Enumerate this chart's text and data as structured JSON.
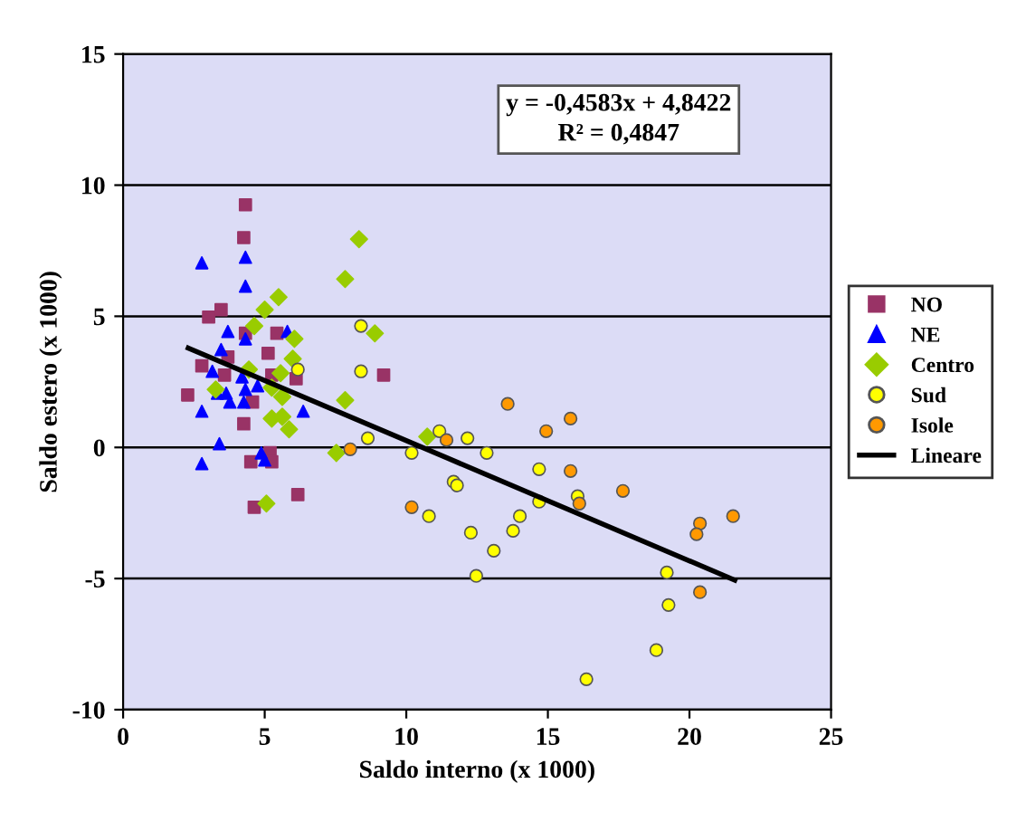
{
  "chart_data": {
    "type": "scatter",
    "xlabel": "Saldo interno (x 1000)",
    "ylabel": "Saldo estero (x 1000)",
    "xlim": [
      0,
      25
    ],
    "xticks": [
      0,
      5,
      10,
      15,
      20,
      25
    ],
    "ylim": [
      -10,
      15
    ],
    "yticks": [
      -10,
      -5,
      0,
      5,
      10,
      15
    ],
    "grid": "y",
    "legend": "right",
    "annotations": [
      "y = -0,4583x + 4,8422",
      "R² = 0,4847"
    ],
    "series": [
      {
        "name": "NO",
        "color": "#993366",
        "marker": "square",
        "x": [
          4.32,
          4.26,
          3.46,
          3.02,
          4.32,
          5.43,
          5.12,
          2.78,
          3.7,
          3.58,
          5.25,
          6.11,
          2.28,
          4.57,
          4.26,
          5.19,
          4.51,
          5.25,
          6.17,
          4.63,
          9.2
        ],
        "values": [
          9.25,
          8.0,
          5.25,
          4.97,
          4.35,
          4.35,
          3.59,
          3.11,
          3.45,
          2.76,
          2.76,
          2.62,
          2.0,
          1.73,
          0.9,
          -0.2,
          -0.55,
          -0.55,
          -1.8,
          -2.28,
          2.76
        ]
      },
      {
        "name": "NE",
        "color": "#0000ff",
        "marker": "triangle",
        "x": [
          2.78,
          4.32,
          4.32,
          3.7,
          4.32,
          5.8,
          3.46,
          3.15,
          3.33,
          3.64,
          4.2,
          4.75,
          4.32,
          3.77,
          4.26,
          2.78,
          6.36,
          3.4,
          2.78,
          4.88,
          5.0
        ],
        "values": [
          7.04,
          7.25,
          6.15,
          4.42,
          4.14,
          4.42,
          3.73,
          2.9,
          2.07,
          2.07,
          2.69,
          2.35,
          2.21,
          1.73,
          1.73,
          1.38,
          1.38,
          0.14,
          -0.62,
          -0.21,
          -0.48
        ]
      },
      {
        "name": "Centro",
        "color": "#99cc00",
        "marker": "diamond",
        "x": [
          8.33,
          7.84,
          5.49,
          5.0,
          8.89,
          4.63,
          6.05,
          5.99,
          5.56,
          4.44,
          3.27,
          5.25,
          5.62,
          7.84,
          5.25,
          5.62,
          5.86,
          7.53,
          10.74,
          5.06
        ],
        "values": [
          7.94,
          6.42,
          5.73,
          5.25,
          4.35,
          4.63,
          4.14,
          3.38,
          2.83,
          2.97,
          2.21,
          2.28,
          1.93,
          1.8,
          1.1,
          1.17,
          0.69,
          -0.21,
          0.41,
          -2.14
        ]
      },
      {
        "name": "Sud",
        "color": "#ffff00",
        "marker": "circle",
        "x": [
          8.4,
          8.4,
          6.17,
          8.64,
          10.19,
          11.17,
          12.16,
          12.84,
          14.69,
          11.67,
          11.79,
          10.8,
          12.28,
          13.09,
          13.77,
          14.01,
          14.69,
          16.05,
          12.47,
          19.2,
          19.26,
          18.83,
          16.36
        ],
        "values": [
          4.63,
          2.9,
          2.97,
          0.35,
          -0.21,
          0.62,
          0.35,
          -0.21,
          -0.83,
          -1.31,
          -1.45,
          -2.62,
          -3.25,
          -3.94,
          -3.18,
          -2.62,
          -2.07,
          -1.86,
          -4.9,
          -4.77,
          -6.01,
          -7.73,
          -8.84
        ]
      },
      {
        "name": "Isole",
        "color": "#ff9900",
        "marker": "circle",
        "x": [
          8.02,
          10.19,
          11.42,
          13.58,
          14.94,
          15.8,
          15.8,
          16.11,
          17.65,
          20.37,
          20.25,
          21.54,
          20.37
        ],
        "values": [
          -0.07,
          -2.28,
          0.28,
          1.66,
          0.62,
          1.1,
          -0.9,
          -2.14,
          -1.66,
          -2.9,
          -3.31,
          -2.62,
          -5.52
        ]
      },
      {
        "name": "Lineare",
        "color": "#000000",
        "type": "line",
        "marker": "none",
        "x": [
          2.3,
          21.6
        ],
        "values": [
          3.79,
          -5.06
        ]
      }
    ]
  }
}
